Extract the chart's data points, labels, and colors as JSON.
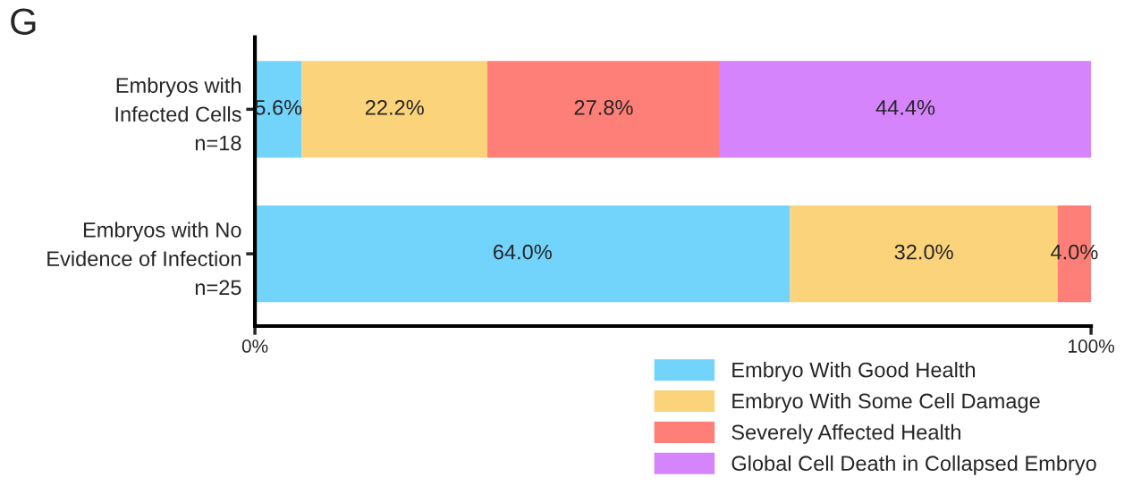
{
  "chart_data": {
    "type": "bar",
    "orientation": "horizontal",
    "stacked": true,
    "categories": [
      "Embryos with\nInfected Cells\nn=18",
      "Embryos with No\nEvidence of Infection\nn=25"
    ],
    "series": [
      {
        "name": "Embryo With Good Health",
        "color": "#73d4fb",
        "values": [
          5.6,
          64.0
        ],
        "value_labels": [
          "5.6%",
          "64.0%"
        ]
      },
      {
        "name": "Embryo With Some Cell Damage",
        "color": "#fbd37a",
        "values": [
          22.2,
          32.0
        ],
        "value_labels": [
          "22.2%",
          "32.0%"
        ]
      },
      {
        "name": "Severely Affected Health",
        "color": "#fd7f77",
        "values": [
          27.8,
          4.0
        ],
        "value_labels": [
          "27.8%",
          "4.0%"
        ]
      },
      {
        "name": "Global Cell Death in Collapsed Embryo",
        "color": "#d684fc",
        "values": [
          44.4,
          null
        ],
        "value_labels": [
          "44.4%",
          null
        ]
      }
    ],
    "xlim": [
      0,
      100
    ],
    "xticks": [
      {
        "value": 0,
        "label": "0%"
      },
      {
        "value": 100,
        "label": "100%"
      }
    ],
    "annotations": [
      "G"
    ],
    "legend": "bottom right",
    "grid": false
  }
}
